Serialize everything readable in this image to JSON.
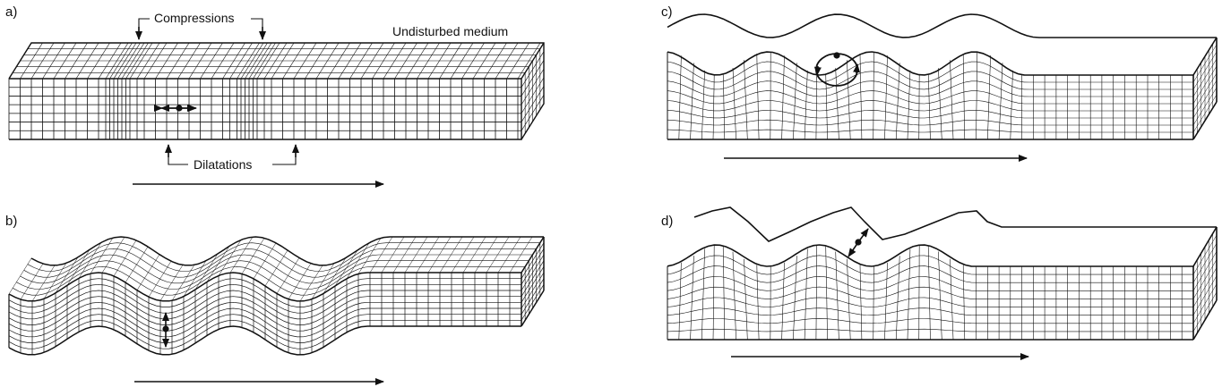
{
  "panels": [
    {
      "label": "a)",
      "annotations": [
        "Compressions",
        "Undisturbed medium",
        "Dilatations"
      ]
    },
    {
      "label": "b)"
    },
    {
      "label": "c)"
    },
    {
      "label": "d)"
    }
  ]
}
